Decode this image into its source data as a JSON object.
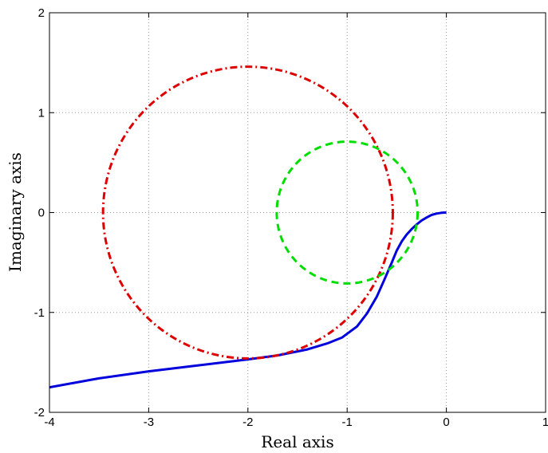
{
  "chart_data": {
    "type": "line",
    "title": "",
    "xlabel": "Real axis",
    "ylabel": "Imaginary axis",
    "xlim": [
      -4,
      1
    ],
    "ylim": [
      -2,
      2
    ],
    "xticks": [
      -4,
      -3,
      -2,
      -1,
      0,
      1
    ],
    "yticks": [
      -2,
      -1,
      0,
      1,
      2
    ],
    "xtick_labels": [
      "-4",
      "-3",
      "-2",
      "-1",
      "0",
      "1"
    ],
    "ytick_labels": [
      "-2",
      "-1",
      "0",
      "1",
      "2"
    ],
    "grid": true,
    "legend": "none",
    "series": [
      {
        "style": "solid",
        "color": "#0000dd",
        "x": [
          -4.0,
          -3.5,
          -3.0,
          -2.5,
          -2.0,
          -1.7,
          -1.4,
          -1.2,
          -1.05,
          -0.9,
          -0.8,
          -0.7,
          -0.62,
          -0.55,
          -0.5,
          -0.45,
          -0.4,
          -0.35,
          -0.3,
          -0.25,
          -0.2,
          -0.15,
          -0.1,
          -0.05,
          0.0
        ],
        "y": [
          -1.75,
          -1.66,
          -1.59,
          -1.53,
          -1.47,
          -1.43,
          -1.37,
          -1.31,
          -1.25,
          -1.14,
          -1.01,
          -0.84,
          -0.66,
          -0.5,
          -0.38,
          -0.29,
          -0.22,
          -0.165,
          -0.12,
          -0.08,
          -0.05,
          -0.025,
          -0.01,
          -0.002,
          0.0
        ]
      },
      {
        "style": "dash-dot",
        "color": "#dd0000",
        "shape": "circle",
        "center": [
          -2.0,
          0.0
        ],
        "radius": 1.46
      },
      {
        "style": "dashed",
        "color": "#00dd00",
        "shape": "circle",
        "center": [
          -1.0,
          0.0
        ],
        "radius": 0.71
      }
    ]
  }
}
